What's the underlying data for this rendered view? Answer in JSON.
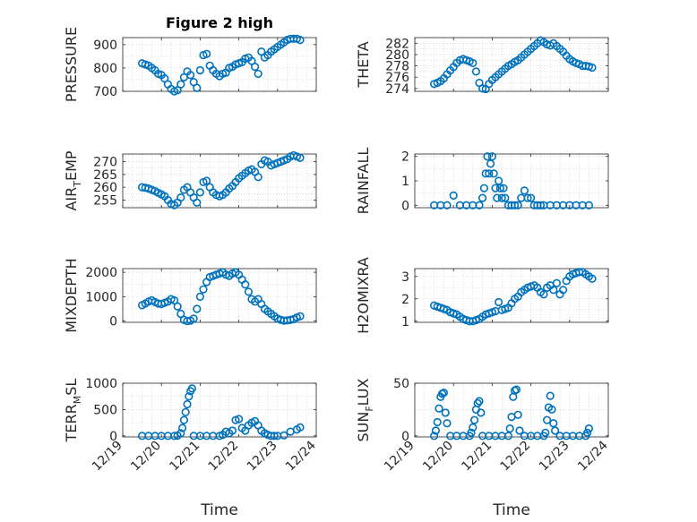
{
  "figure": {
    "title": "Figure 2 high"
  },
  "colors": {
    "marker": "#0072BD",
    "axis": "#262626",
    "grid": "#c8c8c8",
    "background": "#ffffff"
  },
  "chart_data": [
    {
      "id": "pressure",
      "type": "scatter",
      "marker": "open-circle",
      "title": "Figure 2 high",
      "ylabel": "PRESSURE",
      "ylabel_sub": "",
      "ylabel_suffix": "",
      "xlabel": "",
      "xlim": [
        "12/19",
        "12/24"
      ],
      "ylim": [
        700,
        930
      ],
      "yticks": [
        700,
        800,
        900
      ],
      "grid": true,
      "x": [
        "12/19 12:00",
        "12/19 14:00",
        "12/19 16:00",
        "12/19 18:00",
        "12/19 20:00",
        "12/19 22:00",
        "12/20 00:00",
        "12/20 02:00",
        "12/20 04:00",
        "12/20 06:00",
        "12/20 08:00",
        "12/20 10:00",
        "12/20 12:00",
        "12/20 14:00",
        "12/20 16:00",
        "12/20 18:00",
        "12/20 20:00",
        "12/20 22:00",
        "12/21 00:00",
        "12/21 02:00",
        "12/21 04:00",
        "12/21 06:00",
        "12/21 08:00",
        "12/21 10:00",
        "12/21 12:00",
        "12/21 14:00",
        "12/21 16:00",
        "12/21 18:00",
        "12/21 20:00",
        "12/21 22:00",
        "12/22 00:00",
        "12/22 02:00",
        "12/22 04:00",
        "12/22 06:00",
        "12/22 08:00",
        "12/22 10:00",
        "12/22 12:00",
        "12/22 14:00",
        "12/22 16:00",
        "12/22 18:00",
        "12/22 20:00",
        "12/22 22:00",
        "12/23 00:00",
        "12/23 02:00",
        "12/23 04:00",
        "12/23 06:00",
        "12/23 08:00",
        "12/23 10:00",
        "12/23 12:00",
        "12/23 14:00"
      ],
      "y": [
        820,
        815,
        810,
        800,
        790,
        775,
        770,
        755,
        730,
        710,
        700,
        705,
        730,
        760,
        785,
        770,
        740,
        715,
        790,
        855,
        860,
        810,
        790,
        775,
        765,
        775,
        780,
        800,
        805,
        815,
        820,
        825,
        840,
        845,
        830,
        805,
        775,
        870,
        845,
        855,
        870,
        880,
        890,
        900,
        910,
        920,
        925,
        925,
        925,
        920
      ]
    },
    {
      "id": "theta",
      "type": "scatter",
      "marker": "open-circle",
      "title": "",
      "ylabel": "THETA",
      "ylabel_sub": "",
      "ylabel_suffix": "",
      "xlabel": "",
      "xlim": [
        "12/19",
        "12/24"
      ],
      "ylim": [
        273.5,
        283
      ],
      "yticks": [
        274,
        276,
        278,
        280,
        282
      ],
      "grid": true,
      "x": [
        "12/19 12:00",
        "12/19 14:00",
        "12/19 16:00",
        "12/19 18:00",
        "12/19 20:00",
        "12/19 22:00",
        "12/20 00:00",
        "12/20 02:00",
        "12/20 04:00",
        "12/20 06:00",
        "12/20 08:00",
        "12/20 10:00",
        "12/20 12:00",
        "12/20 14:00",
        "12/20 16:00",
        "12/20 18:00",
        "12/20 20:00",
        "12/20 22:00",
        "12/21 00:00",
        "12/21 02:00",
        "12/21 04:00",
        "12/21 06:00",
        "12/21 08:00",
        "12/21 10:00",
        "12/21 12:00",
        "12/21 14:00",
        "12/21 16:00",
        "12/21 18:00",
        "12/21 20:00",
        "12/21 22:00",
        "12/22 00:00",
        "12/22 02:00",
        "12/22 04:00",
        "12/22 06:00",
        "12/22 08:00",
        "12/22 10:00",
        "12/22 12:00",
        "12/22 14:00",
        "12/22 16:00",
        "12/22 18:00",
        "12/22 20:00",
        "12/22 22:00",
        "12/23 00:00",
        "12/23 02:00",
        "12/23 04:00",
        "12/23 06:00",
        "12/23 08:00",
        "12/23 10:00",
        "12/23 12:00",
        "12/23 14:00"
      ],
      "y": [
        274.8,
        275.0,
        275.3,
        275.8,
        276.5,
        277.2,
        277.8,
        278.5,
        279.0,
        279.2,
        279.0,
        278.8,
        278.5,
        277.0,
        275.0,
        274.0,
        273.9,
        274.8,
        275.5,
        276.0,
        276.5,
        277.0,
        277.5,
        278.0,
        278.3,
        278.7,
        279.0,
        279.5,
        280.0,
        280.5,
        281.0,
        281.5,
        282.0,
        282.5,
        282.2,
        281.8,
        281.6,
        282.0,
        281.5,
        281.0,
        280.5,
        279.8,
        279.2,
        278.8,
        278.5,
        278.3,
        278.0,
        278.0,
        277.9,
        277.7
      ]
    },
    {
      "id": "air_temp",
      "type": "scatter",
      "marker": "open-circle",
      "title": "",
      "ylabel": "AIR",
      "ylabel_sub": "T",
      "ylabel_suffix": "EMP",
      "xlabel": "",
      "xlim": [
        "12/19",
        "12/24"
      ],
      "ylim": [
        252,
        273
      ],
      "yticks": [
        255,
        260,
        265,
        270
      ],
      "grid": true,
      "x": [
        "12/19 12:00",
        "12/19 14:00",
        "12/19 16:00",
        "12/19 18:00",
        "12/19 20:00",
        "12/19 22:00",
        "12/20 00:00",
        "12/20 02:00",
        "12/20 04:00",
        "12/20 06:00",
        "12/20 08:00",
        "12/20 10:00",
        "12/20 12:00",
        "12/20 14:00",
        "12/20 16:00",
        "12/20 18:00",
        "12/20 20:00",
        "12/20 22:00",
        "12/21 00:00",
        "12/21 02:00",
        "12/21 04:00",
        "12/21 06:00",
        "12/21 08:00",
        "12/21 10:00",
        "12/21 12:00",
        "12/21 14:00",
        "12/21 16:00",
        "12/21 18:00",
        "12/21 20:00",
        "12/21 22:00",
        "12/22 00:00",
        "12/22 02:00",
        "12/22 04:00",
        "12/22 06:00",
        "12/22 08:00",
        "12/22 10:00",
        "12/22 12:00",
        "12/22 14:00",
        "12/22 16:00",
        "12/22 18:00",
        "12/22 20:00",
        "12/22 22:00",
        "12/23 00:00",
        "12/23 02:00",
        "12/23 04:00",
        "12/23 06:00",
        "12/23 08:00",
        "12/23 10:00",
        "12/23 12:00",
        "12/23 14:00"
      ],
      "y": [
        260,
        259.8,
        259.5,
        259,
        258.5,
        257.8,
        257.2,
        256.5,
        255,
        253.5,
        253,
        254,
        256,
        259,
        260,
        258,
        256,
        254,
        258,
        262,
        262.5,
        260,
        258,
        257,
        256.5,
        257,
        258,
        259.5,
        260.5,
        262,
        263.5,
        264.5,
        265.5,
        266.5,
        267,
        266,
        264,
        269,
        270.5,
        270,
        268.5,
        269,
        269.5,
        270,
        270.5,
        271,
        272,
        272.5,
        272,
        271.5
      ]
    },
    {
      "id": "rainfall",
      "type": "scatter",
      "marker": "open-circle",
      "title": "",
      "ylabel": "RAINFALL",
      "ylabel_sub": "",
      "ylabel_suffix": "",
      "xlabel": "",
      "xlim": [
        "12/19",
        "12/24"
      ],
      "ylim": [
        -0.1,
        2.1
      ],
      "yticks": [
        0,
        1,
        2
      ],
      "grid": true,
      "x": [
        "12/19 12:00",
        "12/19 16:00",
        "12/19 20:00",
        "12/20 00:00",
        "12/20 04:00",
        "12/20 08:00",
        "12/20 12:00",
        "12/20 16:00",
        "12/20 18:00",
        "12/20 19:00",
        "12/20 20:00",
        "12/20 21:00",
        "12/20 22:00",
        "12/20 23:00",
        "12/21 00:00",
        "12/21 01:00",
        "12/21 02:00",
        "12/21 03:00",
        "12/21 04:00",
        "12/21 05:00",
        "12/21 06:00",
        "12/21 07:00",
        "12/21 08:00",
        "12/21 10:00",
        "12/21 12:00",
        "12/21 14:00",
        "12/21 16:00",
        "12/21 18:00",
        "12/21 20:00",
        "12/21 22:00",
        "12/22 00:00",
        "12/22 02:00",
        "12/22 04:00",
        "12/22 06:00",
        "12/22 08:00",
        "12/22 12:00",
        "12/22 16:00",
        "12/22 20:00",
        "12/23 00:00",
        "12/23 04:00",
        "12/23 08:00",
        "12/23 12:00"
      ],
      "y": [
        0,
        0,
        0,
        0.4,
        0,
        0,
        0,
        0,
        0.3,
        0.7,
        1.3,
        2.0,
        1.3,
        1.7,
        2.0,
        1.3,
        0.7,
        0.3,
        1.0,
        0.7,
        0.3,
        0.7,
        0.3,
        0,
        0,
        0,
        0,
        0.3,
        0.6,
        0.3,
        0.3,
        0,
        0,
        0,
        0,
        0,
        0,
        0,
        0,
        0,
        0,
        0
      ]
    },
    {
      "id": "mixdepth",
      "type": "scatter",
      "marker": "open-circle",
      "title": "",
      "ylabel": "MIXDEPTH",
      "ylabel_sub": "",
      "ylabel_suffix": "",
      "xlabel": "",
      "xlim": [
        "12/19",
        "12/24"
      ],
      "ylim": [
        -50,
        2150
      ],
      "yticks": [
        0,
        1000,
        2000
      ],
      "grid": true,
      "x": [
        "12/19 12:00",
        "12/19 14:00",
        "12/19 16:00",
        "12/19 18:00",
        "12/19 20:00",
        "12/19 22:00",
        "12/20 00:00",
        "12/20 02:00",
        "12/20 04:00",
        "12/20 06:00",
        "12/20 08:00",
        "12/20 10:00",
        "12/20 12:00",
        "12/20 14:00",
        "12/20 16:00",
        "12/20 18:00",
        "12/20 20:00",
        "12/20 22:00",
        "12/21 00:00",
        "12/21 02:00",
        "12/21 04:00",
        "12/21 06:00",
        "12/21 08:00",
        "12/21 10:00",
        "12/21 12:00",
        "12/21 14:00",
        "12/21 16:00",
        "12/21 18:00",
        "12/21 20:00",
        "12/21 22:00",
        "12/22 00:00",
        "12/22 02:00",
        "12/22 04:00",
        "12/22 06:00",
        "12/22 08:00",
        "12/22 10:00",
        "12/22 12:00",
        "12/22 14:00",
        "12/22 16:00",
        "12/22 18:00",
        "12/22 20:00",
        "12/22 22:00",
        "12/23 00:00",
        "12/23 02:00",
        "12/23 04:00",
        "12/23 06:00",
        "12/23 08:00",
        "12/23 10:00",
        "12/23 12:00",
        "12/23 14:00"
      ],
      "y": [
        650,
        720,
        800,
        850,
        780,
        720,
        700,
        750,
        800,
        900,
        850,
        600,
        300,
        50,
        0,
        20,
        100,
        500,
        1000,
        1300,
        1600,
        1800,
        1850,
        1900,
        1950,
        2000,
        1900,
        1850,
        1950,
        2000,
        1900,
        1700,
        1500,
        1200,
        900,
        800,
        900,
        700,
        500,
        400,
        300,
        200,
        100,
        50,
        20,
        30,
        50,
        80,
        150,
        200
      ]
    },
    {
      "id": "h2omixra",
      "type": "scatter",
      "marker": "open-circle",
      "title": "",
      "ylabel": "H2OMIXRA",
      "ylabel_sub": "",
      "ylabel_suffix": "",
      "xlabel": "",
      "xlim": [
        "12/19",
        "12/24"
      ],
      "ylim": [
        0.95,
        3.35
      ],
      "yticks": [
        1,
        2,
        3
      ],
      "grid": true,
      "x": [
        "12/19 12:00",
        "12/19 14:00",
        "12/19 16:00",
        "12/19 18:00",
        "12/19 20:00",
        "12/19 22:00",
        "12/20 00:00",
        "12/20 02:00",
        "12/20 04:00",
        "12/20 06:00",
        "12/20 08:00",
        "12/20 10:00",
        "12/20 12:00",
        "12/20 14:00",
        "12/20 16:00",
        "12/20 18:00",
        "12/20 20:00",
        "12/20 22:00",
        "12/21 00:00",
        "12/21 02:00",
        "12/21 04:00",
        "12/21 06:00",
        "12/21 08:00",
        "12/21 10:00",
        "12/21 12:00",
        "12/21 14:00",
        "12/21 16:00",
        "12/21 18:00",
        "12/21 20:00",
        "12/21 22:00",
        "12/22 00:00",
        "12/22 02:00",
        "12/22 04:00",
        "12/22 06:00",
        "12/22 08:00",
        "12/22 10:00",
        "12/22 12:00",
        "12/22 14:00",
        "12/22 16:00",
        "12/22 18:00",
        "12/22 20:00",
        "12/22 22:00",
        "12/23 00:00",
        "12/23 02:00",
        "12/23 04:00",
        "12/23 06:00",
        "12/23 08:00",
        "12/23 10:00",
        "12/23 12:00",
        "12/23 14:00"
      ],
      "y": [
        1.7,
        1.65,
        1.6,
        1.55,
        1.5,
        1.4,
        1.35,
        1.3,
        1.2,
        1.1,
        1.05,
        1.0,
        1.0,
        1.05,
        1.1,
        1.2,
        1.3,
        1.35,
        1.4,
        1.45,
        1.85,
        1.5,
        1.55,
        1.6,
        1.8,
        2.0,
        2.1,
        2.3,
        2.4,
        2.5,
        2.55,
        2.6,
        2.5,
        2.3,
        2.2,
        2.5,
        2.6,
        2.4,
        2.7,
        2.2,
        2.4,
        2.8,
        3.0,
        3.1,
        3.15,
        3.2,
        3.2,
        3.1,
        3.0,
        2.9
      ]
    },
    {
      "id": "terr_msl",
      "type": "scatter",
      "marker": "open-circle",
      "title": "",
      "ylabel": "TERR",
      "ylabel_sub": "M",
      "ylabel_suffix": "SL",
      "xlabel": "Time",
      "xlim": [
        "12/19",
        "12/24"
      ],
      "ylim": [
        -20,
        1000
      ],
      "yticks": [
        0,
        500,
        1000
      ],
      "grid": true,
      "xticks": [
        "12/19",
        "12/20",
        "12/21",
        "12/22",
        "12/23",
        "12/24"
      ],
      "x": [
        "12/19 12:00",
        "12/19 16:00",
        "12/19 20:00",
        "12/20 00:00",
        "12/20 04:00",
        "12/20 08:00",
        "12/20 10:00",
        "12/20 12:00",
        "12/20 13:00",
        "12/20 14:00",
        "12/20 15:00",
        "12/20 16:00",
        "12/20 17:00",
        "12/20 18:00",
        "12/20 19:00",
        "12/20 20:00",
        "12/21 00:00",
        "12/21 04:00",
        "12/21 08:00",
        "12/21 12:00",
        "12/21 14:00",
        "12/21 16:00",
        "12/21 18:00",
        "12/21 20:00",
        "12/21 22:00",
        "12/22 00:00",
        "12/22 02:00",
        "12/22 04:00",
        "12/22 06:00",
        "12/22 08:00",
        "12/22 10:00",
        "12/22 12:00",
        "12/22 14:00",
        "12/22 16:00",
        "12/22 18:00",
        "12/22 20:00",
        "12/22 22:00",
        "12/23 00:00",
        "12/23 04:00",
        "12/23 08:00",
        "12/23 12:00",
        "12/23 14:00"
      ],
      "y": [
        0,
        0,
        0,
        0,
        0,
        0,
        5,
        50,
        150,
        300,
        450,
        600,
        750,
        850,
        900,
        0,
        0,
        0,
        0,
        0,
        20,
        80,
        50,
        100,
        300,
        320,
        150,
        100,
        200,
        250,
        280,
        200,
        100,
        50,
        20,
        0,
        0,
        0,
        10,
        80,
        120,
        160
      ]
    },
    {
      "id": "sun_flux",
      "type": "scatter",
      "marker": "open-circle",
      "title": "",
      "ylabel": "SUN",
      "ylabel_sub": "F",
      "ylabel_suffix": "LUX",
      "xlabel": "Time",
      "xlim": [
        "12/19",
        "12/24"
      ],
      "ylim": [
        -1,
        50
      ],
      "yticks": [
        0,
        50
      ],
      "grid": true,
      "xticks": [
        "12/19",
        "12/20",
        "12/21",
        "12/22",
        "12/23",
        "12/24"
      ],
      "x": [
        "12/19 12:00",
        "12/19 13:00",
        "12/19 14:00",
        "12/19 15:00",
        "12/19 16:00",
        "12/19 17:00",
        "12/19 18:00",
        "12/19 19:00",
        "12/19 20:00",
        "12/19 22:00",
        "12/20 02:00",
        "12/20 06:00",
        "12/20 10:00",
        "12/20 11:00",
        "12/20 12:00",
        "12/20 13:00",
        "12/20 14:00",
        "12/20 15:00",
        "12/20 16:00",
        "12/20 17:00",
        "12/20 18:00",
        "12/20 22:00",
        "12/21 02:00",
        "12/21 06:00",
        "12/21 10:00",
        "12/21 11:00",
        "12/21 12:00",
        "12/21 13:00",
        "12/21 14:00",
        "12/21 15:00",
        "12/21 16:00",
        "12/21 17:00",
        "12/21 20:00",
        "12/22 00:00",
        "12/22 04:00",
        "12/22 08:00",
        "12/22 09:00",
        "12/22 10:00",
        "12/22 11:00",
        "12/22 12:00",
        "12/22 13:00",
        "12/22 14:00",
        "12/22 15:00",
        "12/22 18:00",
        "12/22 22:00",
        "12/23 02:00",
        "12/23 06:00",
        "12/23 10:00",
        "12/23 11:00",
        "12/23 12:00"
      ],
      "y": [
        0,
        5,
        13,
        26,
        37,
        40,
        41,
        22,
        12,
        0,
        0,
        0,
        0,
        3,
        8,
        15,
        25,
        31,
        33,
        22,
        0,
        0,
        0,
        0,
        0,
        7,
        18,
        37,
        43,
        44,
        20,
        5,
        0,
        0,
        0,
        0,
        3,
        15,
        27,
        38,
        25,
        12,
        5,
        0,
        0,
        0,
        0,
        0,
        3,
        7
      ]
    }
  ]
}
